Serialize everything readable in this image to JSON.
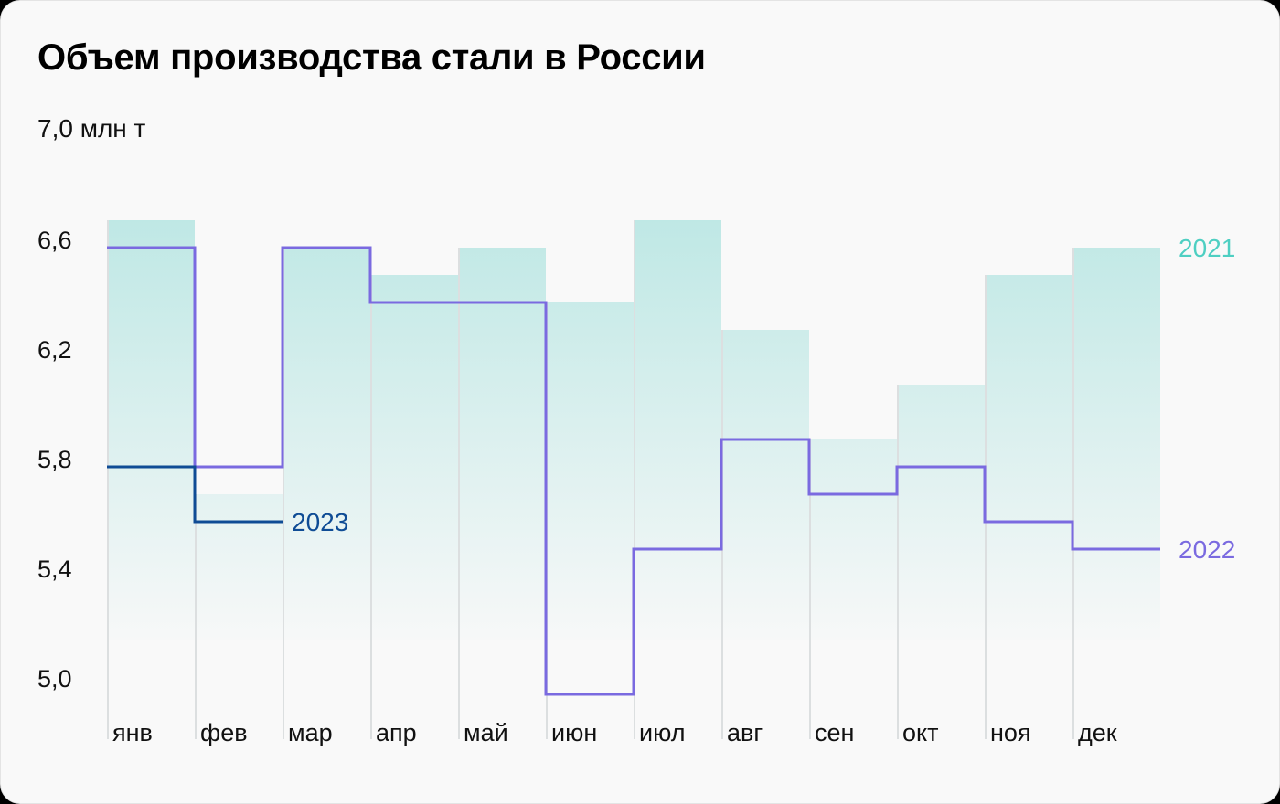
{
  "title": "Объем производства стали в России",
  "unit_label": "7,0 млн т",
  "colors": {
    "background": "#f9f9f9",
    "bar_2021_top": "#bfe8e5",
    "bar_2021_bottom": "#f7f8f8",
    "line_2022": "#7a6ae0",
    "line_2023": "#0f4c95",
    "label_2021": "#4ecfc2",
    "label_2022": "#7a6ae0",
    "label_2023": "#0f4c95",
    "separator": "#dcdfe0"
  },
  "chart_data": {
    "type": "bar",
    "title": "Объем производства стали в России",
    "xlabel": "",
    "ylabel": "млн т",
    "ylim": [
      5.0,
      7.0
    ],
    "yticks": [
      {
        "value": 7.0,
        "label": "7,0 млн т"
      },
      {
        "value": 6.6,
        "label": "6,6"
      },
      {
        "value": 6.2,
        "label": "6,2"
      },
      {
        "value": 5.8,
        "label": "5,8"
      },
      {
        "value": 5.4,
        "label": "5,4"
      },
      {
        "value": 5.0,
        "label": "5,0"
      }
    ],
    "grid": false,
    "categories": [
      "янв",
      "фев",
      "мар",
      "апр",
      "май",
      "июн",
      "июл",
      "авг",
      "сен",
      "окт",
      "ноя",
      "дек"
    ],
    "series": [
      {
        "name": "2021",
        "style": "bars",
        "values": [
          6.7,
          5.7,
          6.6,
          6.5,
          6.6,
          6.4,
          6.7,
          6.3,
          5.9,
          6.1,
          6.5,
          6.6
        ]
      },
      {
        "name": "2022",
        "style": "step-line",
        "values": [
          6.6,
          5.8,
          6.6,
          6.4,
          6.4,
          4.97,
          5.5,
          5.9,
          5.7,
          5.8,
          5.6,
          5.5
        ]
      },
      {
        "name": "2023",
        "style": "step-line",
        "values": [
          5.8,
          5.6
        ]
      }
    ],
    "legend": "inline labels at series ends"
  }
}
